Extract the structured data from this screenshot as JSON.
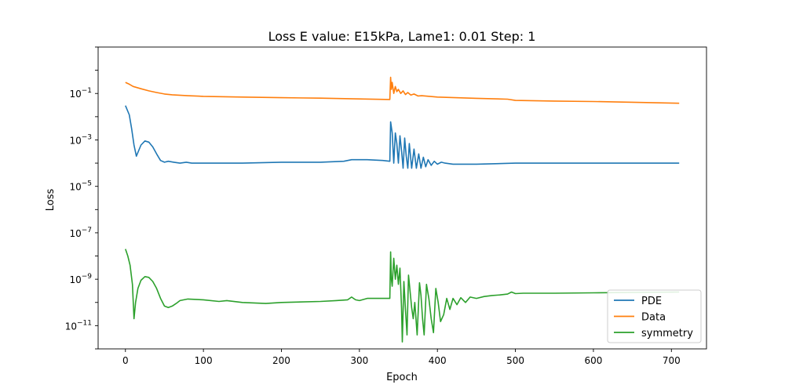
{
  "chart_data": {
    "type": "line",
    "title": "Loss E value: E15kPa, Lame1: 0.01 Step: 1",
    "xlabel": "Epoch",
    "ylabel": "Loss",
    "xlim": [
      -35,
      745
    ],
    "ylim": [
      1e-12,
      10.0
    ],
    "yscale": "log",
    "grid": false,
    "legend_position": "lower-right",
    "x_ticks": [
      {
        "value": 0,
        "label": "0"
      },
      {
        "value": 100,
        "label": "100"
      },
      {
        "value": 200,
        "label": "200"
      },
      {
        "value": 300,
        "label": "300"
      },
      {
        "value": 400,
        "label": "400"
      },
      {
        "value": 500,
        "label": "500"
      },
      {
        "value": 600,
        "label": "600"
      },
      {
        "value": 700,
        "label": "700"
      }
    ],
    "y_ticks": [
      {
        "exponent": -11,
        "label_base": "10",
        "label_exp": "−11"
      },
      {
        "exponent": -9,
        "label_base": "10",
        "label_exp": "−9"
      },
      {
        "exponent": -7,
        "label_base": "10",
        "label_exp": "−7"
      },
      {
        "exponent": -5,
        "label_base": "10",
        "label_exp": "−5"
      },
      {
        "exponent": -3,
        "label_base": "10",
        "label_exp": "−3"
      },
      {
        "exponent": -1,
        "label_base": "10",
        "label_exp": "−1"
      }
    ],
    "series": [
      {
        "name": "PDE",
        "color": "#1f77b4",
        "points": [
          [
            0,
            0.03
          ],
          [
            5,
            0.012
          ],
          [
            8,
            0.003
          ],
          [
            11,
            0.0006
          ],
          [
            14,
            0.0002
          ],
          [
            17,
            0.00035
          ],
          [
            20,
            0.0006
          ],
          [
            25,
            0.0009
          ],
          [
            30,
            0.0008
          ],
          [
            35,
            0.0005
          ],
          [
            40,
            0.00025
          ],
          [
            45,
            0.00013
          ],
          [
            50,
            0.00011
          ],
          [
            55,
            0.00012
          ],
          [
            62,
            0.00011
          ],
          [
            70,
            0.0001
          ],
          [
            78,
            0.00011
          ],
          [
            85,
            0.0001
          ],
          [
            100,
            0.0001
          ],
          [
            150,
            0.0001
          ],
          [
            200,
            0.00011
          ],
          [
            250,
            0.00011
          ],
          [
            280,
            0.00012
          ],
          [
            290,
            0.00014
          ],
          [
            310,
            0.00014
          ],
          [
            330,
            0.00013
          ],
          [
            339,
            0.00012
          ],
          [
            340,
            0.006
          ],
          [
            342,
            0.002
          ],
          [
            344,
            0.0001
          ],
          [
            346,
            0.002
          ],
          [
            348,
            0.0007
          ],
          [
            350,
            0.0001
          ],
          [
            352,
            0.0015
          ],
          [
            354,
            0.00035
          ],
          [
            356,
            6e-05
          ],
          [
            358,
            0.0012
          ],
          [
            360,
            0.0002
          ],
          [
            362,
            6e-05
          ],
          [
            364,
            0.0007
          ],
          [
            367,
            6e-05
          ],
          [
            370,
            0.0004
          ],
          [
            373,
            6e-05
          ],
          [
            376,
            0.00025
          ],
          [
            379,
            6e-05
          ],
          [
            382,
            0.00018
          ],
          [
            385,
            7e-05
          ],
          [
            388,
            0.00014
          ],
          [
            392,
            8e-05
          ],
          [
            396,
            0.00012
          ],
          [
            400,
            9e-05
          ],
          [
            405,
            0.00011
          ],
          [
            410,
            0.0001
          ],
          [
            420,
            9e-05
          ],
          [
            450,
            9e-05
          ],
          [
            500,
            0.0001
          ],
          [
            550,
            0.0001
          ],
          [
            600,
            0.0001
          ],
          [
            650,
            0.0001
          ],
          [
            710,
            0.0001
          ]
        ]
      },
      {
        "name": "Data",
        "color": "#ff7f0e",
        "points": [
          [
            0,
            0.3
          ],
          [
            5,
            0.25
          ],
          [
            10,
            0.2
          ],
          [
            20,
            0.16
          ],
          [
            30,
            0.13
          ],
          [
            40,
            0.11
          ],
          [
            50,
            0.095
          ],
          [
            60,
            0.088
          ],
          [
            80,
            0.08
          ],
          [
            100,
            0.075
          ],
          [
            150,
            0.07
          ],
          [
            200,
            0.066
          ],
          [
            250,
            0.063
          ],
          [
            300,
            0.058
          ],
          [
            339,
            0.055
          ],
          [
            340,
            0.5
          ],
          [
            341,
            0.15
          ],
          [
            342,
            0.3
          ],
          [
            344,
            0.1
          ],
          [
            346,
            0.2
          ],
          [
            348,
            0.12
          ],
          [
            350,
            0.15
          ],
          [
            353,
            0.1
          ],
          [
            356,
            0.13
          ],
          [
            359,
            0.09
          ],
          [
            362,
            0.11
          ],
          [
            366,
            0.085
          ],
          [
            370,
            0.095
          ],
          [
            375,
            0.078
          ],
          [
            380,
            0.08
          ],
          [
            390,
            0.075
          ],
          [
            400,
            0.07
          ],
          [
            450,
            0.062
          ],
          [
            490,
            0.057
          ],
          [
            500,
            0.05
          ],
          [
            550,
            0.047
          ],
          [
            600,
            0.045
          ],
          [
            650,
            0.042
          ],
          [
            710,
            0.038
          ]
        ]
      },
      {
        "name": "symmetry",
        "color": "#2ca02c",
        "points": [
          [
            0,
            2e-08
          ],
          [
            3,
            1e-08
          ],
          [
            6,
            4e-09
          ],
          [
            9,
            6e-10
          ],
          [
            11,
            2e-11
          ],
          [
            13,
            1e-10
          ],
          [
            16,
            4e-10
          ],
          [
            20,
            9e-10
          ],
          [
            25,
            1.3e-09
          ],
          [
            30,
            1.2e-09
          ],
          [
            35,
            8e-10
          ],
          [
            40,
            4e-10
          ],
          [
            45,
            1.5e-10
          ],
          [
            50,
            7e-11
          ],
          [
            55,
            6e-11
          ],
          [
            60,
            7e-11
          ],
          [
            65,
            9e-11
          ],
          [
            70,
            1.2e-10
          ],
          [
            80,
            1.4e-10
          ],
          [
            100,
            1.3e-10
          ],
          [
            120,
            1.1e-10
          ],
          [
            130,
            1.2e-10
          ],
          [
            150,
            1e-10
          ],
          [
            180,
            9e-11
          ],
          [
            200,
            1e-10
          ],
          [
            250,
            1.1e-10
          ],
          [
            270,
            1.2e-10
          ],
          [
            285,
            1.3e-10
          ],
          [
            290,
            1.7e-10
          ],
          [
            295,
            1.3e-10
          ],
          [
            300,
            1.2e-10
          ],
          [
            310,
            1.5e-10
          ],
          [
            339,
            1.5e-10
          ],
          [
            340,
            1.5e-08
          ],
          [
            341,
            1e-09
          ],
          [
            342,
            5e-10
          ],
          [
            344,
            8e-09
          ],
          [
            346,
            1e-09
          ],
          [
            348,
            4e-09
          ],
          [
            350,
            6e-10
          ],
          [
            352,
            3e-09
          ],
          [
            354,
            6e-11
          ],
          [
            355,
            2e-12
          ],
          [
            357,
            8e-10
          ],
          [
            359,
            5e-11
          ],
          [
            361,
            4e-12
          ],
          [
            363,
            1.5e-09
          ],
          [
            365,
            3e-10
          ],
          [
            367,
            6e-11
          ],
          [
            369,
            2e-11
          ],
          [
            371,
            1e-10
          ],
          [
            374,
            4e-12
          ],
          [
            377,
            7e-10
          ],
          [
            379,
            2e-10
          ],
          [
            381,
            2e-11
          ],
          [
            383,
            4e-12
          ],
          [
            386,
            6e-10
          ],
          [
            389,
            1.5e-10
          ],
          [
            392,
            2e-11
          ],
          [
            395,
            5e-12
          ],
          [
            398,
            4e-10
          ],
          [
            401,
            1e-10
          ],
          [
            404,
            1.5e-11
          ],
          [
            408,
            3e-11
          ],
          [
            412,
            1.5e-10
          ],
          [
            416,
            5e-11
          ],
          [
            420,
            1.5e-10
          ],
          [
            425,
            8e-11
          ],
          [
            430,
            1.6e-10
          ],
          [
            436,
            1e-10
          ],
          [
            442,
            1.7e-10
          ],
          [
            450,
            1.5e-10
          ],
          [
            460,
            1.8e-10
          ],
          [
            470,
            2e-10
          ],
          [
            480,
            2.1e-10
          ],
          [
            490,
            2.3e-10
          ],
          [
            495,
            2.8e-10
          ],
          [
            500,
            2.4e-10
          ],
          [
            510,
            2.5e-10
          ],
          [
            550,
            2.5e-10
          ],
          [
            600,
            2.6e-10
          ],
          [
            650,
            2.7e-10
          ],
          [
            710,
            2.8e-10
          ]
        ]
      }
    ]
  }
}
